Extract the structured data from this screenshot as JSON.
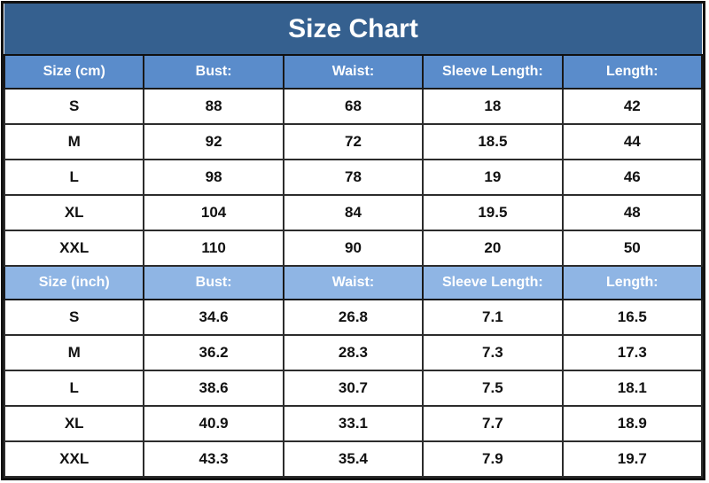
{
  "title": "Size Chart",
  "colors": {
    "title_bg": "#35608F",
    "header_cm_bg": "#5A8CCB",
    "header_inch_bg": "#8FB5E4",
    "border": "#1A1A1A",
    "header_text": "#FFFFFF",
    "data_text": "#111111"
  },
  "chart_data": {
    "type": "table",
    "title": "Size Chart",
    "sections": [
      {
        "unit": "cm",
        "columns": [
          "Size (cm)",
          "Bust:",
          "Waist:",
          "Sleeve Length:",
          "Length:"
        ],
        "rows": [
          [
            "S",
            "88",
            "68",
            "18",
            "42"
          ],
          [
            "M",
            "92",
            "72",
            "18.5",
            "44"
          ],
          [
            "L",
            "98",
            "78",
            "19",
            "46"
          ],
          [
            "XL",
            "104",
            "84",
            "19.5",
            "48"
          ],
          [
            "XXL",
            "110",
            "90",
            "20",
            "50"
          ]
        ]
      },
      {
        "unit": "inch",
        "columns": [
          "Size (inch)",
          "Bust:",
          "Waist:",
          "Sleeve Length:",
          "Length:"
        ],
        "rows": [
          [
            "S",
            "34.6",
            "26.8",
            "7.1",
            "16.5"
          ],
          [
            "M",
            "36.2",
            "28.3",
            "7.3",
            "17.3"
          ],
          [
            "L",
            "38.6",
            "30.7",
            "7.5",
            "18.1"
          ],
          [
            "XL",
            "40.9",
            "33.1",
            "7.7",
            "18.9"
          ],
          [
            "XXL",
            "43.3",
            "35.4",
            "7.9",
            "19.7"
          ]
        ]
      }
    ]
  }
}
